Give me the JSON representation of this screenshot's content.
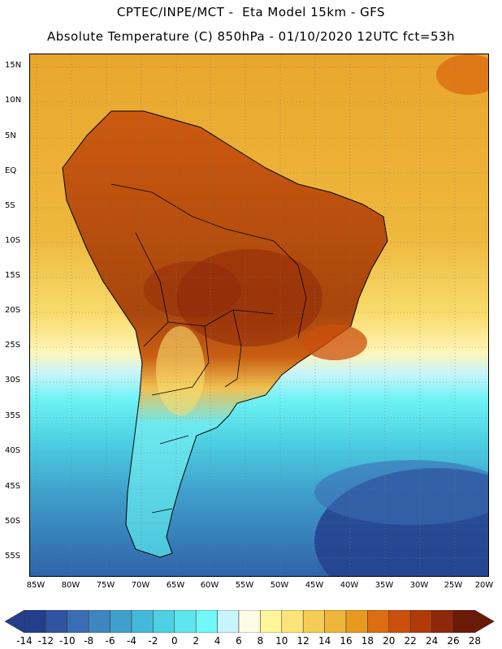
{
  "title_line1": "CPTEC/INPE/MCT -  Eta Model 15km - GFS",
  "title_line2": "Absolute Temperature (C) 850hPa - 01/10/2020 12UTC fct=53h",
  "lat_labels": [
    "15N",
    "10N",
    "5N",
    "EQ",
    "5S",
    "10S",
    "15S",
    "20S",
    "25S",
    "30S",
    "35S",
    "40S",
    "45S",
    "50S",
    "55S"
  ],
  "lon_labels": [
    "85W",
    "80W",
    "75W",
    "70W",
    "65W",
    "60W",
    "55W",
    "50W",
    "45W",
    "40W",
    "35W",
    "30W",
    "25W",
    "20W"
  ],
  "colorbar": {
    "labels": [
      "-14",
      "-12",
      "-10",
      "-8",
      "-6",
      "-4",
      "-2",
      "0",
      "2",
      "4",
      "6",
      "8",
      "10",
      "12",
      "14",
      "16",
      "18",
      "20",
      "22",
      "24",
      "26",
      "28"
    ],
    "colors": [
      "#233f8c",
      "#2f54a0",
      "#3a6db2",
      "#3f86c0",
      "#40a0cc",
      "#43b8d8",
      "#4cd0e2",
      "#5ee6ee",
      "#72f7f7",
      "#c8f4fb",
      "#fffbe4",
      "#fff59a",
      "#fbe47a",
      "#f5cc55",
      "#eeb73b",
      "#e89a1f",
      "#dc6d12",
      "#cc4f0c",
      "#b03a0a",
      "#8f280a",
      "#6b1a08"
    ],
    "low_arrow_color": "#233f8c",
    "high_arrow_color": "#6b1a08"
  },
  "map": {
    "ocean_north_color": "#ecb238",
    "ocean_south_color": "#3f86c0",
    "land_hot_color": "#b0520f",
    "land_cold_color": "#5ed6e6",
    "grid_style": "dotted"
  }
}
